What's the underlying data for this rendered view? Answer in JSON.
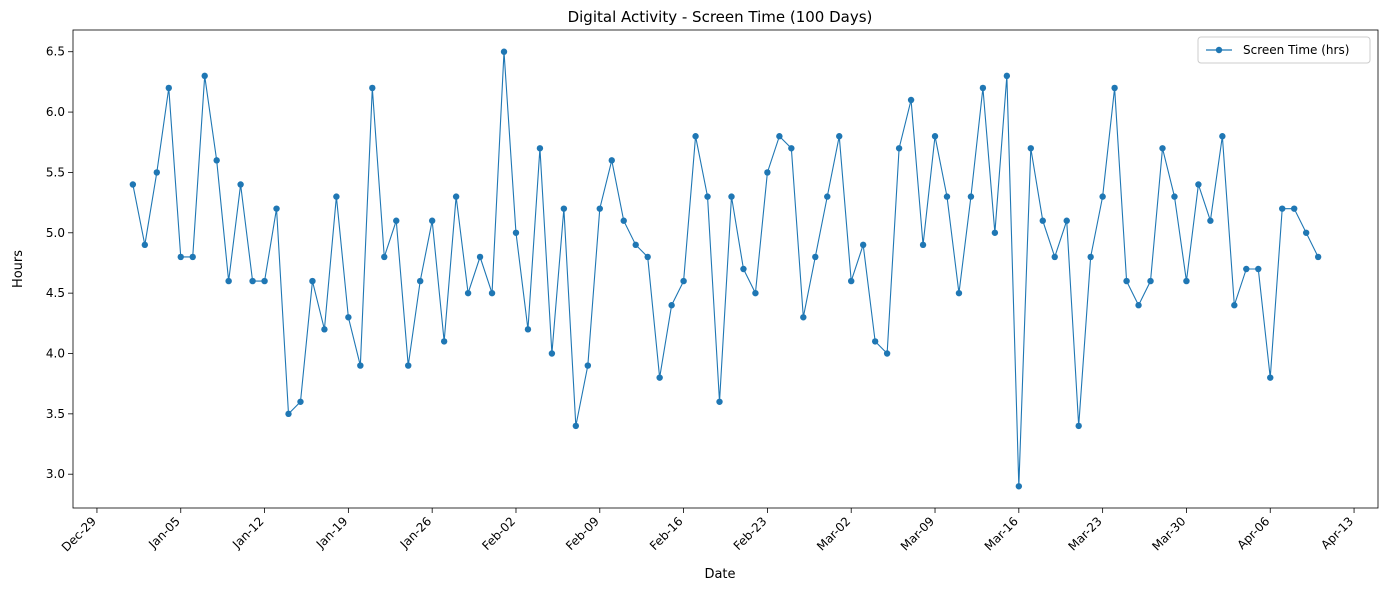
{
  "chart_data": {
    "type": "line",
    "title": "Digital Activity - Screen Time (100 Days)",
    "xlabel": "Date",
    "ylabel": "Hours",
    "x_start": "2024-01-01",
    "x_step_days": 1,
    "xlim": [
      "2023-12-27",
      "2024-04-14"
    ],
    "ylim": [
      2.72,
      6.68
    ],
    "x_ticks": [
      "Dec-29",
      "Jan-05",
      "Jan-12",
      "Jan-19",
      "Jan-26",
      "Feb-02",
      "Feb-09",
      "Feb-16",
      "Feb-23",
      "Mar-02",
      "Mar-09",
      "Mar-16",
      "Mar-23",
      "Mar-30",
      "Apr-06",
      "Apr-13"
    ],
    "y_ticks": [
      "3.0",
      "3.5",
      "4.0",
      "4.5",
      "5.0",
      "5.5",
      "6.0",
      "6.5"
    ],
    "grid": false,
    "legend_position": "top-right",
    "series": [
      {
        "name": "Screen Time (hrs)",
        "color": "#1f77b4",
        "values": [
          5.4,
          4.9,
          5.5,
          6.2,
          4.8,
          4.8,
          6.3,
          5.6,
          4.6,
          5.4,
          4.6,
          4.6,
          5.2,
          3.5,
          3.6,
          4.6,
          4.2,
          5.3,
          4.3,
          3.9,
          6.2,
          4.8,
          5.1,
          3.9,
          4.6,
          5.1,
          4.1,
          5.3,
          4.5,
          4.8,
          4.5,
          6.5,
          5.0,
          4.2,
          5.7,
          4.0,
          5.2,
          3.4,
          3.9,
          5.2,
          5.6,
          5.1,
          4.9,
          4.8,
          3.8,
          4.4,
          4.6,
          5.8,
          5.3,
          3.6,
          5.3,
          4.7,
          4.5,
          5.5,
          5.8,
          5.7,
          4.3,
          4.8,
          5.3,
          5.8,
          4.6,
          4.9,
          4.1,
          4.0,
          5.7,
          6.1,
          4.9,
          5.8,
          5.3,
          4.5,
          5.3,
          6.2,
          5.0,
          6.3,
          2.9,
          5.7,
          5.1,
          4.8,
          5.1,
          3.4,
          4.8,
          5.3,
          6.2,
          4.6,
          4.4,
          4.6,
          5.7,
          5.3,
          4.6,
          5.4,
          5.1,
          5.8,
          4.4,
          4.7,
          4.7,
          3.8,
          5.2,
          5.2,
          5.0,
          4.8
        ]
      }
    ]
  }
}
